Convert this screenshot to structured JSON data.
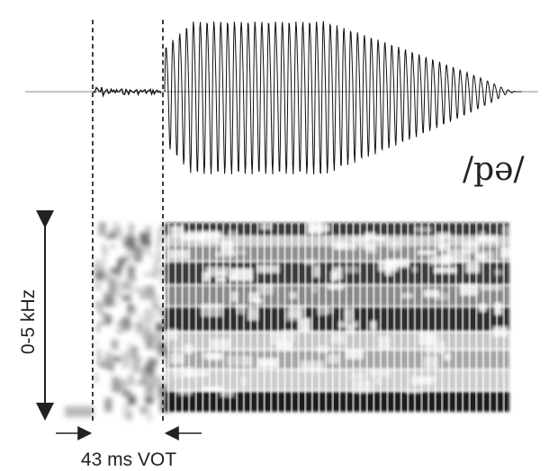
{
  "labels": {
    "transcription": "/pə/",
    "frequency_range": "0-5 kHz",
    "vot": "43 ms VOT"
  },
  "colors": {
    "ink": "#222222",
    "dark_band": "#1a1a1a",
    "mid_band": "#6b6b6b",
    "light_band": "#b8b8b8",
    "background": "#ffffff"
  }
}
